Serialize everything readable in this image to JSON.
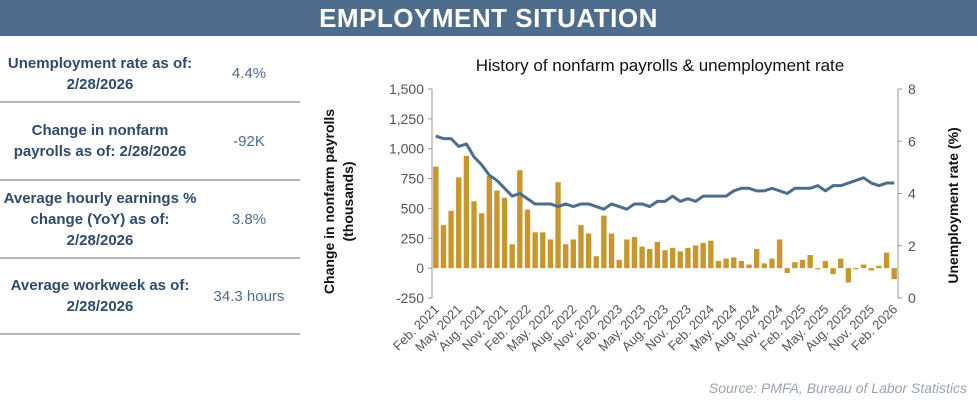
{
  "header": {
    "title": "EMPLOYMENT SITUATION"
  },
  "stats": [
    {
      "label": "Unemployment rate as of: 2/28/2026",
      "value": "4.4%"
    },
    {
      "label": "Change in nonfarm payrolls as of: 2/28/2026",
      "value": "-92K"
    },
    {
      "label": "Average hourly earnings % change (YoY) as of: 2/28/2026",
      "value": "3.8%"
    },
    {
      "label": "Average workweek as of: 2/28/2026",
      "value": "34.3 hours"
    }
  ],
  "chart_data": {
    "type": "bar",
    "title": "History of nonfarm payrolls & unemployment rate",
    "ylabel": [
      "Change in nonfarm payrolls",
      "(thousands)"
    ],
    "y2label": "Unemployment rate (%)",
    "categories": [
      "Feb. 2021",
      null,
      null,
      "May. 2021",
      null,
      null,
      "Aug. 2021",
      null,
      null,
      "Nov. 2021",
      null,
      null,
      "Feb. 2022",
      null,
      null,
      "May. 2022",
      null,
      null,
      "Aug. 2022",
      null,
      null,
      "Nov. 2022",
      null,
      null,
      "Feb. 2023",
      null,
      null,
      "May. 2023",
      null,
      null,
      "Aug. 2023",
      null,
      null,
      "Nov. 2023",
      null,
      null,
      "Feb. 2024",
      null,
      null,
      "May. 2024",
      null,
      null,
      "Aug. 2024",
      null,
      null,
      "Nov. 2024",
      null,
      null,
      "Feb. 2025",
      null,
      null,
      "May. 2025",
      null,
      null,
      "Aug. 2025",
      null,
      null,
      "Nov. 2025",
      null,
      null,
      "Feb. 2026"
    ],
    "series": [
      {
        "type": "bar",
        "color": "#c9962c",
        "values": [
          850,
          360,
          480,
          760,
          940,
          560,
          460,
          770,
          650,
          590,
          200,
          820,
          490,
          300,
          300,
          240,
          720,
          200,
          240,
          360,
          290,
          100,
          440,
          290,
          70,
          240,
          260,
          180,
          160,
          220,
          150,
          170,
          140,
          170,
          190,
          210,
          230,
          60,
          80,
          90,
          60,
          30,
          160,
          40,
          80,
          240,
          -40,
          50,
          70,
          110,
          -10,
          60,
          -50,
          80,
          -120,
          -10,
          30,
          -20,
          20,
          130,
          -92
        ]
      },
      {
        "type": "line",
        "axis": "y2",
        "color": "#4e6d8c",
        "values": [
          6.2,
          6.1,
          6.1,
          5.8,
          5.9,
          5.4,
          5.1,
          4.7,
          4.5,
          4.2,
          3.9,
          4.0,
          3.8,
          3.6,
          3.6,
          3.6,
          3.5,
          3.6,
          3.5,
          3.6,
          3.6,
          3.5,
          3.4,
          3.6,
          3.5,
          3.4,
          3.6,
          3.6,
          3.5,
          3.7,
          3.7,
          3.9,
          3.7,
          3.8,
          3.7,
          3.9,
          3.9,
          3.9,
          3.9,
          4.1,
          4.2,
          4.2,
          4.1,
          4.1,
          4.2,
          4.1,
          4.0,
          4.2,
          4.2,
          4.2,
          4.3,
          4.1,
          4.3,
          4.3,
          4.4,
          4.5,
          4.6,
          4.4,
          4.3,
          4.4,
          4.4
        ]
      }
    ],
    "ylim": [
      -250,
      1500
    ],
    "yticks": [
      -250,
      0,
      250,
      500,
      750,
      {
        "value": 1000,
        "label": "1,000"
      },
      {
        "value": 1250,
        "label": "1,250"
      },
      {
        "value": 1500,
        "label": "1,500"
      }
    ],
    "y2lim": [
      0,
      8
    ],
    "y2ticks": [
      0,
      2,
      4,
      6,
      8
    ]
  },
  "source": "Source: PMFA, Bureau of Labor Statistics"
}
